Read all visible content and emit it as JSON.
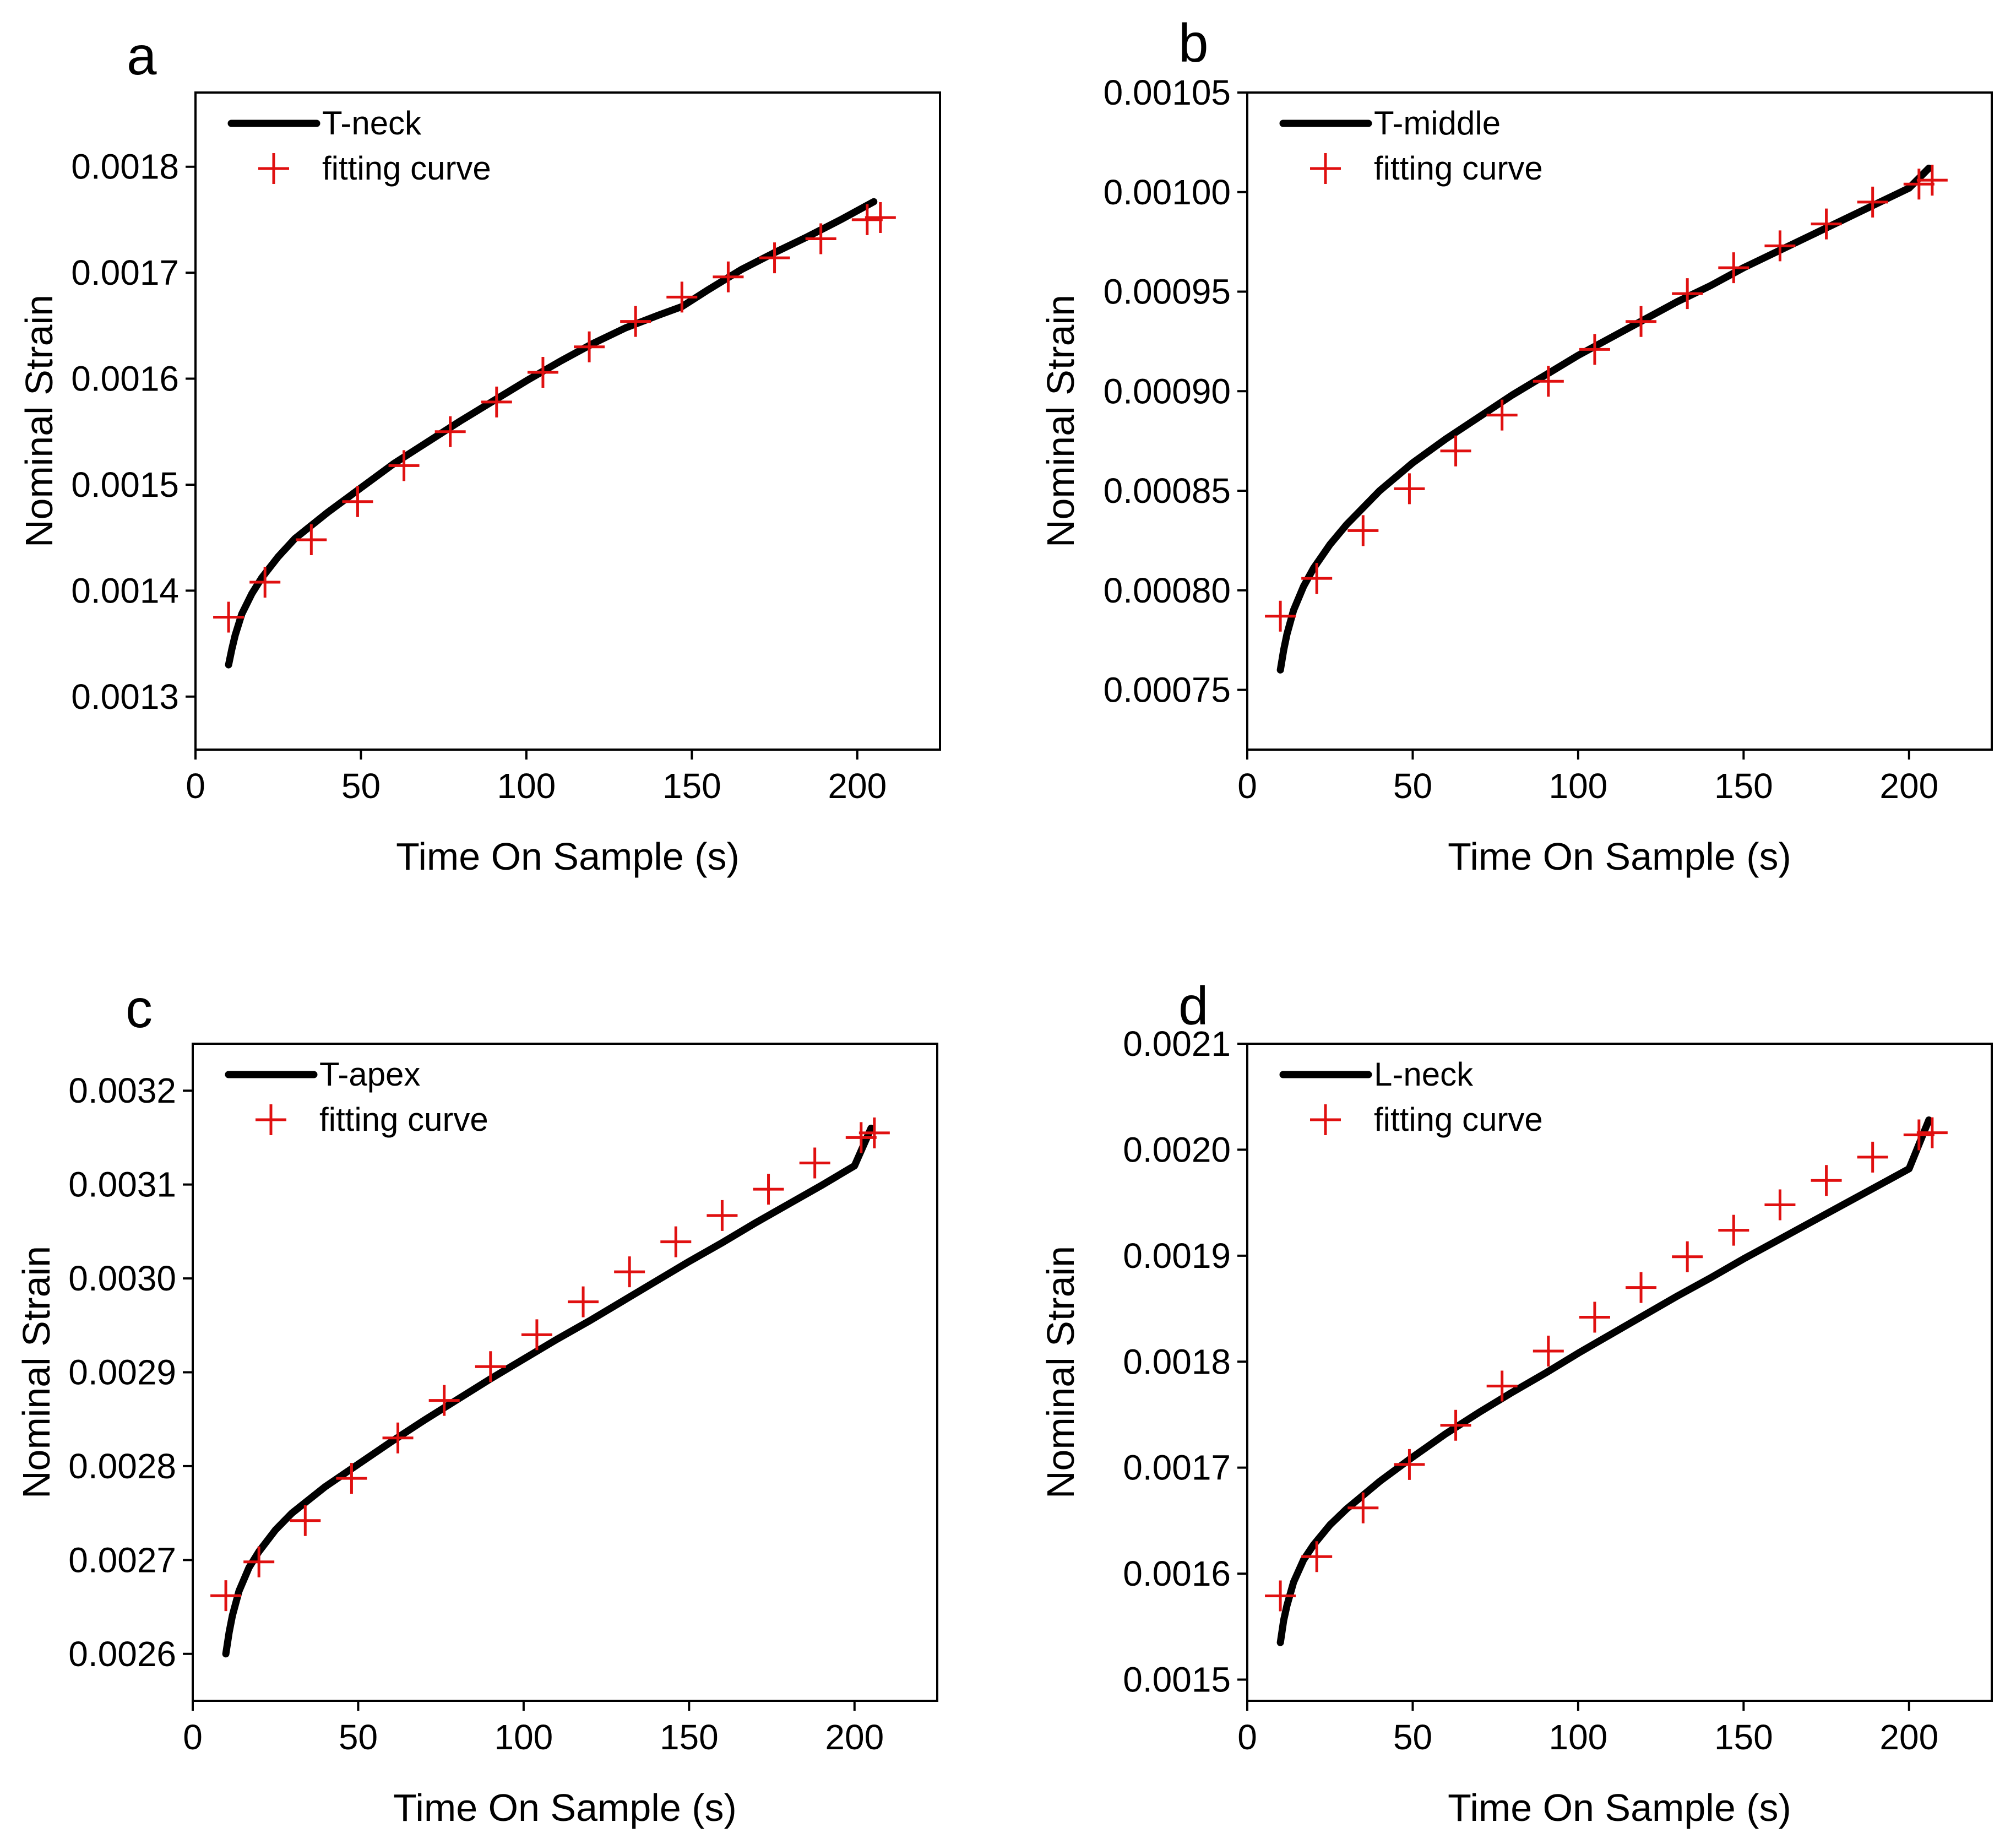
{
  "colors": {
    "data_line": "#000000",
    "fit_marker": "#e01010",
    "axes": "#000000"
  },
  "chart_data": [
    {
      "type": "line",
      "panel": "a",
      "xlabel": "Time On Sample (s)",
      "ylabel": "Nominal Strain",
      "xlim": [
        0,
        225
      ],
      "ylim": [
        0.00125,
        0.00187
      ],
      "xticks": [
        0,
        50,
        100,
        150,
        200
      ],
      "yticks": [
        0.0013,
        0.0014,
        0.0015,
        0.0016,
        0.0017,
        0.0018
      ],
      "ytick_labels": [
        "0.0013",
        "0.0014",
        "0.0015",
        "0.0016",
        "0.0017",
        "0.0018"
      ],
      "legend_position": "top-left",
      "series": [
        {
          "name": "T-neck",
          "style": "line",
          "x": [
            10,
            11,
            12,
            14,
            17,
            20,
            25,
            30,
            40,
            50,
            60,
            70,
            80,
            90,
            100,
            110,
            120,
            130,
            140,
            147,
            155,
            165,
            175,
            185,
            195,
            205
          ],
          "y": [
            0.00133,
            0.001345,
            0.001358,
            0.001378,
            0.001397,
            0.001412,
            0.001432,
            0.001449,
            0.001474,
            0.001497,
            0.00152,
            0.00154,
            0.00156,
            0.001579,
            0.001598,
            0.001616,
            0.001633,
            0.001648,
            0.00166,
            0.001668,
            0.001684,
            0.001703,
            0.001719,
            0.001734,
            0.00175,
            0.001767
          ]
        },
        {
          "name": "fitting curve",
          "style": "marker",
          "x": [
            10,
            21,
            35,
            49,
            63,
            77,
            91,
            105,
            119,
            133,
            147,
            161,
            175,
            189,
            203,
            207
          ],
          "y": [
            0.001375,
            0.001408,
            0.001448,
            0.001484,
            0.001518,
            0.00155,
            0.001578,
            0.001606,
            0.00163,
            0.001654,
            0.001677,
            0.001696,
            0.001714,
            0.001732,
            0.00175,
            0.001752
          ]
        }
      ]
    },
    {
      "type": "line",
      "panel": "b",
      "xlabel": "Time On Sample (s)",
      "ylabel": "Nominal Strain",
      "xlim": [
        0,
        225
      ],
      "ylim": [
        0.00072,
        0.00105
      ],
      "xticks": [
        0,
        50,
        100,
        150,
        200
      ],
      "yticks": [
        0.00075,
        0.0008,
        0.00085,
        0.0009,
        0.00095,
        0.001,
        0.00105
      ],
      "ytick_labels": [
        "0.00075",
        "0.00080",
        "0.00085",
        "0.00090",
        "0.00095",
        "0.00100",
        "0.00105"
      ],
      "legend_position": "top-left",
      "series": [
        {
          "name": "T-middle",
          "style": "line",
          "x": [
            10,
            11,
            12,
            14,
            17,
            20,
            25,
            30,
            40,
            50,
            60,
            70,
            80,
            90,
            100,
            110,
            120,
            130,
            140,
            150,
            160,
            170,
            180,
            190,
            200,
            206
          ],
          "y": [
            0.00076,
            0.00077,
            0.000778,
            0.00079,
            0.000802,
            0.000811,
            0.000823,
            0.000833,
            0.00085,
            0.000864,
            0.000876,
            0.000887,
            0.000898,
            0.000908,
            0.000918,
            0.000927,
            0.000936,
            0.000945,
            0.000953,
            0.000962,
            0.00097,
            0.000978,
            0.000986,
            0.000994,
            0.001002,
            0.001012
          ]
        },
        {
          "name": "fitting curve",
          "style": "marker",
          "x": [
            10,
            21,
            35,
            49,
            63,
            77,
            91,
            105,
            119,
            133,
            147,
            161,
            175,
            189,
            203,
            207
          ],
          "y": [
            0.000787,
            0.000806,
            0.00083,
            0.000851,
            0.00087,
            0.000888,
            0.000905,
            0.000921,
            0.000935,
            0.000949,
            0.000962,
            0.000973,
            0.000984,
            0.000995,
            0.001004,
            0.001006
          ]
        }
      ]
    },
    {
      "type": "line",
      "panel": "c",
      "xlabel": "Time On Sample (s)",
      "ylabel": "Nominal Strain",
      "xlim": [
        0,
        225
      ],
      "ylim": [
        0.00255,
        0.00325
      ],
      "xticks": [
        0,
        50,
        100,
        150,
        200
      ],
      "yticks": [
        0.0026,
        0.0027,
        0.0028,
        0.0029,
        0.003,
        0.0031,
        0.0032
      ],
      "ytick_labels": [
        "0.0026",
        "0.0027",
        "0.0028",
        "0.0029",
        "0.0030",
        "0.0031",
        "0.0032"
      ],
      "legend_position": "top-left",
      "series": [
        {
          "name": "T-apex",
          "style": "line",
          "x": [
            10,
            11,
            12,
            14,
            17,
            20,
            25,
            30,
            40,
            50,
            60,
            70,
            80,
            90,
            100,
            110,
            120,
            130,
            140,
            150,
            160,
            170,
            180,
            190,
            200,
            205
          ],
          "y": [
            0.0026,
            0.002623,
            0.002641,
            0.002667,
            0.002692,
            0.002709,
            0.002732,
            0.00275,
            0.002778,
            0.002802,
            0.002826,
            0.002849,
            0.002871,
            0.002893,
            0.002914,
            0.002935,
            0.002955,
            0.002976,
            0.002997,
            0.003018,
            0.003038,
            0.003059,
            0.003079,
            0.003099,
            0.00312,
            0.00316
          ]
        },
        {
          "name": "fitting curve",
          "style": "marker",
          "x": [
            10,
            20,
            34,
            48,
            62,
            76,
            90,
            104,
            118,
            132,
            146,
            160,
            174,
            188,
            202,
            206
          ],
          "y": [
            0.002662,
            0.002698,
            0.002742,
            0.002787,
            0.00283,
            0.00287,
            0.002906,
            0.00294,
            0.002975,
            0.003007,
            0.003039,
            0.003067,
            0.003095,
            0.003123,
            0.00315,
            0.003155
          ]
        }
      ]
    },
    {
      "type": "line",
      "panel": "d",
      "xlabel": "Time On Sample (s)",
      "ylabel": "Nominal Strain",
      "xlim": [
        0,
        225
      ],
      "ylim": [
        0.00148,
        0.0021
      ],
      "xticks": [
        0,
        50,
        100,
        150,
        200
      ],
      "yticks": [
        0.0015,
        0.0016,
        0.0017,
        0.0018,
        0.0019,
        0.002,
        0.0021
      ],
      "ytick_labels": [
        "0.0015",
        "0.0016",
        "0.0017",
        "0.0018",
        "0.0019",
        "0.0020",
        "0.0021"
      ],
      "legend_position": "top-left",
      "series": [
        {
          "name": "L-neck",
          "style": "line",
          "x": [
            10,
            11,
            12,
            14,
            17,
            20,
            25,
            30,
            40,
            50,
            60,
            70,
            80,
            90,
            100,
            110,
            120,
            130,
            140,
            150,
            160,
            170,
            180,
            190,
            200,
            206
          ],
          "y": [
            0.001535,
            0.001556,
            0.00157,
            0.001592,
            0.001613,
            0.001627,
            0.001646,
            0.001661,
            0.001687,
            0.00171,
            0.001732,
            0.001752,
            0.001771,
            0.001789,
            0.001808,
            0.001826,
            0.001844,
            0.001862,
            0.001879,
            0.001897,
            0.001914,
            0.001931,
            0.001948,
            0.001965,
            0.001982,
            0.002028
          ]
        },
        {
          "name": "fitting curve",
          "style": "marker",
          "x": [
            10,
            21,
            35,
            49,
            63,
            77,
            91,
            105,
            119,
            133,
            147,
            161,
            175,
            189,
            203,
            207
          ],
          "y": [
            0.001579,
            0.001616,
            0.001662,
            0.001703,
            0.00174,
            0.001777,
            0.00181,
            0.001842,
            0.00187,
            0.001899,
            0.001924,
            0.001948,
            0.001971,
            0.001993,
            0.002014,
            0.002016
          ]
        }
      ]
    }
  ]
}
